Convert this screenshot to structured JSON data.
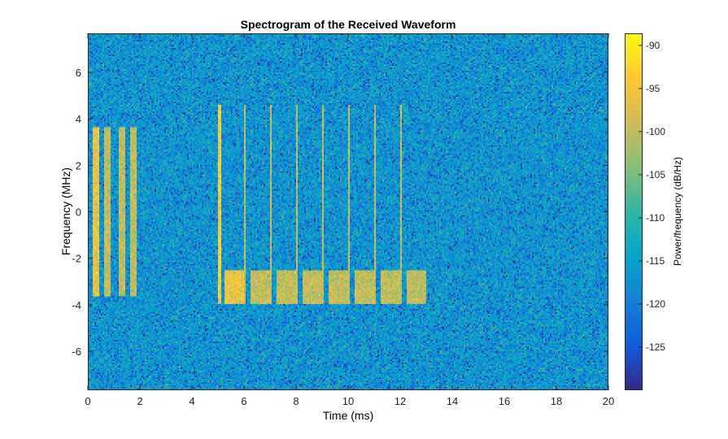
{
  "chart_data": {
    "type": "heatmap",
    "title": "Spectrogram of the Received Waveform",
    "xlabel": "Time (ms)",
    "ylabel": "Frequency (MHz)",
    "xlim": [
      0,
      20
    ],
    "ylim": [
      -7.68,
      7.68
    ],
    "xticks": [
      0,
      2,
      4,
      6,
      8,
      10,
      12,
      14,
      16,
      18,
      20
    ],
    "yticks": [
      -6,
      -4,
      -2,
      0,
      2,
      4,
      6
    ],
    "colorbar": {
      "label": "Power/frequency (dB/Hz)",
      "clim": [
        -130,
        -88.6
      ],
      "ticks": [
        -90,
        -95,
        -100,
        -105,
        -110,
        -115,
        -120,
        -125
      ],
      "colormap": "parula"
    },
    "noise_floor_db": -116,
    "components": [
      {
        "kind": "burst",
        "t": [
          0.16,
          0.44
        ],
        "f": [
          -3.6,
          3.6
        ],
        "power_db": -96
      },
      {
        "kind": "burst",
        "t": [
          0.6,
          0.88
        ],
        "f": [
          -3.6,
          3.6
        ],
        "power_db": -100
      },
      {
        "kind": "burst",
        "t": [
          1.16,
          1.44
        ],
        "f": [
          -3.6,
          3.6
        ],
        "power_db": -100
      },
      {
        "kind": "burst",
        "t": [
          1.6,
          1.88
        ],
        "f": [
          -3.6,
          3.6
        ],
        "power_db": -100
      },
      {
        "kind": "line",
        "t": [
          5.0,
          5.12
        ],
        "f": [
          -4.0,
          4.6
        ],
        "power_db": -94
      },
      {
        "kind": "line",
        "t": [
          6.02,
          6.08
        ],
        "f": [
          -4.0,
          4.6
        ],
        "power_db": -100
      },
      {
        "kind": "line",
        "t": [
          7.02,
          7.08
        ],
        "f": [
          -4.0,
          4.6
        ],
        "power_db": -100
      },
      {
        "kind": "line",
        "t": [
          8.02,
          8.08
        ],
        "f": [
          -4.0,
          4.6
        ],
        "power_db": -100
      },
      {
        "kind": "line",
        "t": [
          9.02,
          9.08
        ],
        "f": [
          -4.0,
          4.6
        ],
        "power_db": -100
      },
      {
        "kind": "line",
        "t": [
          10.02,
          10.08
        ],
        "f": [
          -4.0,
          4.6
        ],
        "power_db": -100
      },
      {
        "kind": "line",
        "t": [
          11.02,
          11.08
        ],
        "f": [
          -4.0,
          4.6
        ],
        "power_db": -100
      },
      {
        "kind": "line",
        "t": [
          12.02,
          12.08
        ],
        "f": [
          -4.0,
          4.6
        ],
        "power_db": -100
      },
      {
        "kind": "block",
        "t": [
          5.22,
          6.02
        ],
        "f": [
          -4.0,
          -2.5
        ],
        "power_db": -96
      },
      {
        "kind": "block",
        "t": [
          6.22,
          7.02
        ],
        "f": [
          -4.0,
          -2.5
        ],
        "power_db": -100
      },
      {
        "kind": "block",
        "t": [
          7.22,
          8.02
        ],
        "f": [
          -4.0,
          -2.5
        ],
        "power_db": -100
      },
      {
        "kind": "block",
        "t": [
          8.22,
          9.02
        ],
        "f": [
          -4.0,
          -2.5
        ],
        "power_db": -100
      },
      {
        "kind": "block",
        "t": [
          9.22,
          10.02
        ],
        "f": [
          -4.0,
          -2.5
        ],
        "power_db": -100
      },
      {
        "kind": "block",
        "t": [
          10.22,
          11.02
        ],
        "f": [
          -4.0,
          -2.5
        ],
        "power_db": -100
      },
      {
        "kind": "block",
        "t": [
          11.22,
          12.02
        ],
        "f": [
          -4.0,
          -2.5
        ],
        "power_db": -100
      },
      {
        "kind": "block",
        "t": [
          12.22,
          13.02
        ],
        "f": [
          -4.0,
          -2.5
        ],
        "power_db": -100
      }
    ]
  }
}
